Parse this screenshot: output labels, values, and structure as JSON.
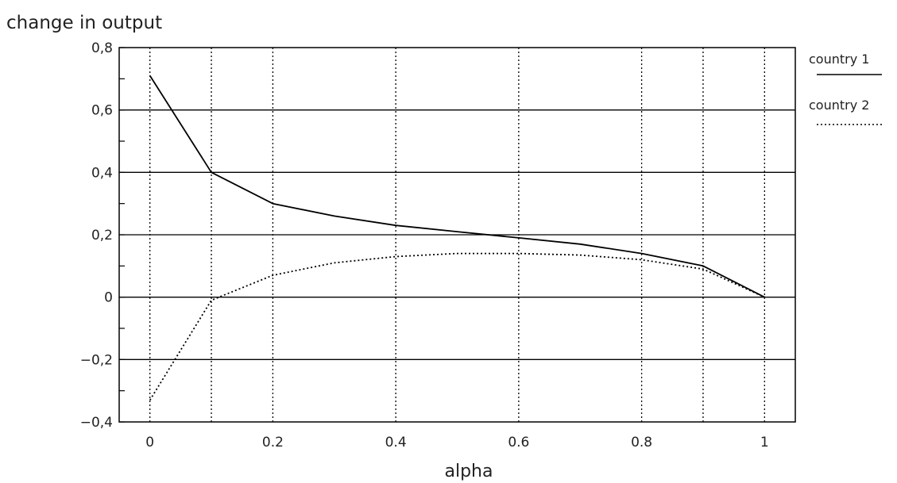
{
  "chart_data": {
    "type": "line",
    "title": "",
    "xlabel": "alpha",
    "ylabel": "change in output",
    "x": [
      0,
      0.1,
      0.2,
      0.3,
      0.4,
      0.5,
      0.6,
      0.7,
      0.8,
      0.9,
      1
    ],
    "series": [
      {
        "name": "country 1",
        "style": "solid",
        "color": "#000000",
        "values": [
          0.71,
          0.4,
          0.3,
          0.26,
          0.23,
          0.21,
          0.19,
          0.17,
          0.14,
          0.1,
          0.0
        ]
      },
      {
        "name": "country 2",
        "style": "dotted",
        "color": "#000000",
        "values": [
          -0.33,
          -0.01,
          0.07,
          0.11,
          0.13,
          0.14,
          0.14,
          0.135,
          0.12,
          0.09,
          0.0
        ]
      }
    ],
    "xlim": [
      -0.05,
      1.05
    ],
    "ylim": [
      -0.4,
      0.8
    ],
    "xticks": [
      0,
      0.2,
      0.4,
      0.6,
      0.8,
      1
    ],
    "xtick_labels": [
      "0",
      "0.2",
      "0.4",
      "0.6",
      "0.8",
      "1"
    ],
    "yticks": [
      -0.4,
      -0.2,
      0,
      0.2,
      0.4,
      0.6,
      0.8
    ],
    "ytick_labels": [
      "−0,4",
      "−0,2",
      "0",
      "0,2",
      "0,4",
      "0,6",
      "0,8"
    ],
    "grid": {
      "horizontal": "solid",
      "vertical": "dotted",
      "vertical_at": [
        0,
        0.1,
        0.2,
        0.4,
        0.6,
        0.8,
        0.9,
        1
      ]
    },
    "legend_position": "right"
  }
}
